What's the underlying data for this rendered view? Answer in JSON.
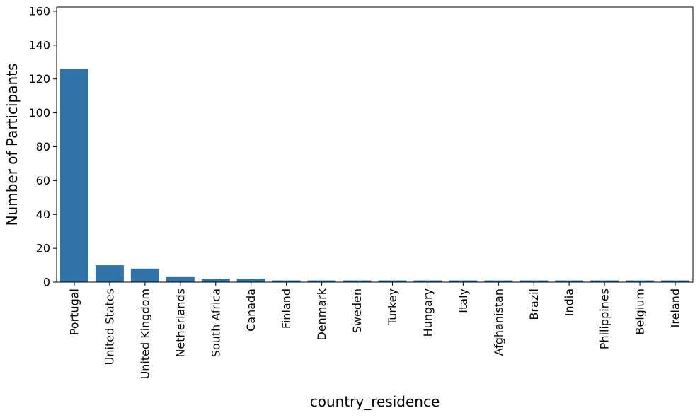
{
  "chart_data": {
    "type": "bar",
    "title": "",
    "xlabel": "country_residence",
    "ylabel": "Number of Participants",
    "categories": [
      "Portugal",
      "United States",
      "United Kingdom",
      "Netherlands",
      "South Africa",
      "Canada",
      "Finland",
      "Denmark",
      "Sweden",
      "Turkey",
      "Hungary",
      "Italy",
      "Afghanistan",
      "Brazil",
      "India",
      "Philippines",
      "Belgium",
      "Ireland"
    ],
    "values": [
      126,
      10,
      8,
      3,
      2,
      2,
      1,
      1,
      1,
      1,
      1,
      1,
      1,
      1,
      1,
      1,
      1,
      1
    ],
    "ylim": [
      0,
      162.5
    ],
    "yticks": [
      0,
      20,
      40,
      60,
      80,
      100,
      120,
      140,
      160
    ],
    "bar_color": "#2f73a8",
    "grid": false
  }
}
